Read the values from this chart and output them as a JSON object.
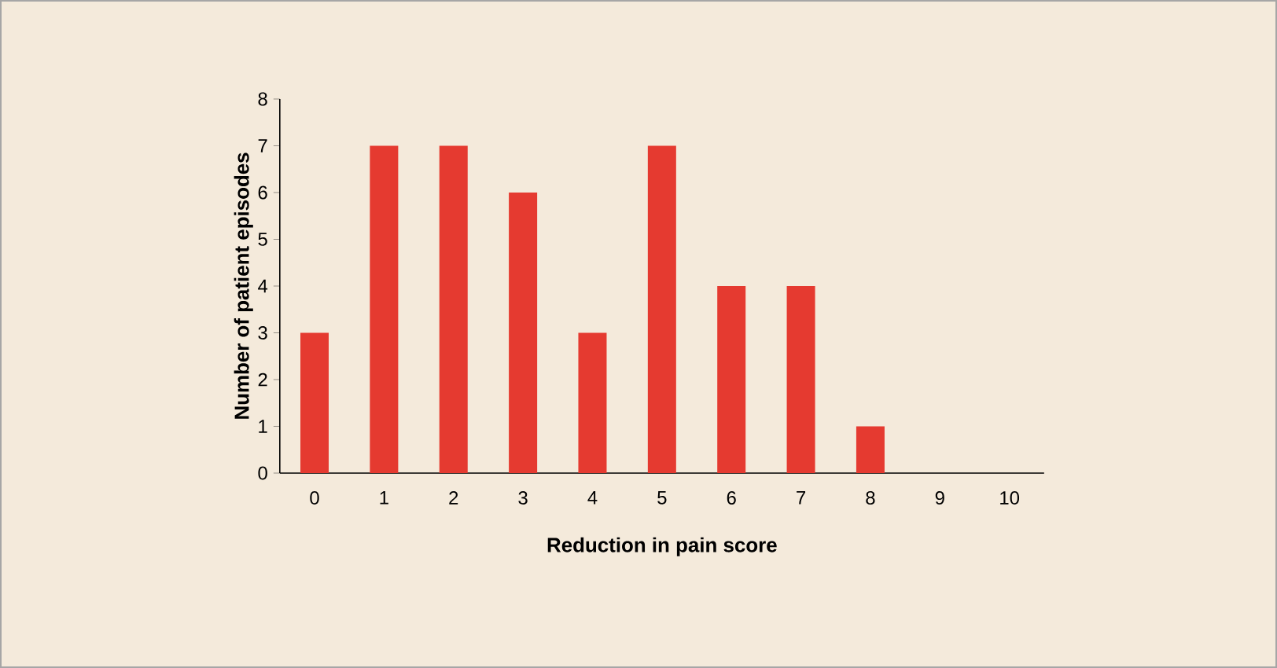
{
  "chart_data": {
    "type": "bar",
    "xlabel": "Reduction in pain score",
    "ylabel": "Number of patient episodes",
    "categories": [
      "0",
      "1",
      "2",
      "3",
      "4",
      "5",
      "6",
      "7",
      "8",
      "9",
      "10"
    ],
    "values": [
      3,
      7,
      7,
      6,
      3,
      7,
      4,
      4,
      1,
      0,
      0
    ],
    "color": "#e53a30",
    "ylim": [
      0,
      8
    ],
    "yticks": [
      0,
      1,
      2,
      3,
      4,
      5,
      6,
      7,
      8
    ]
  }
}
